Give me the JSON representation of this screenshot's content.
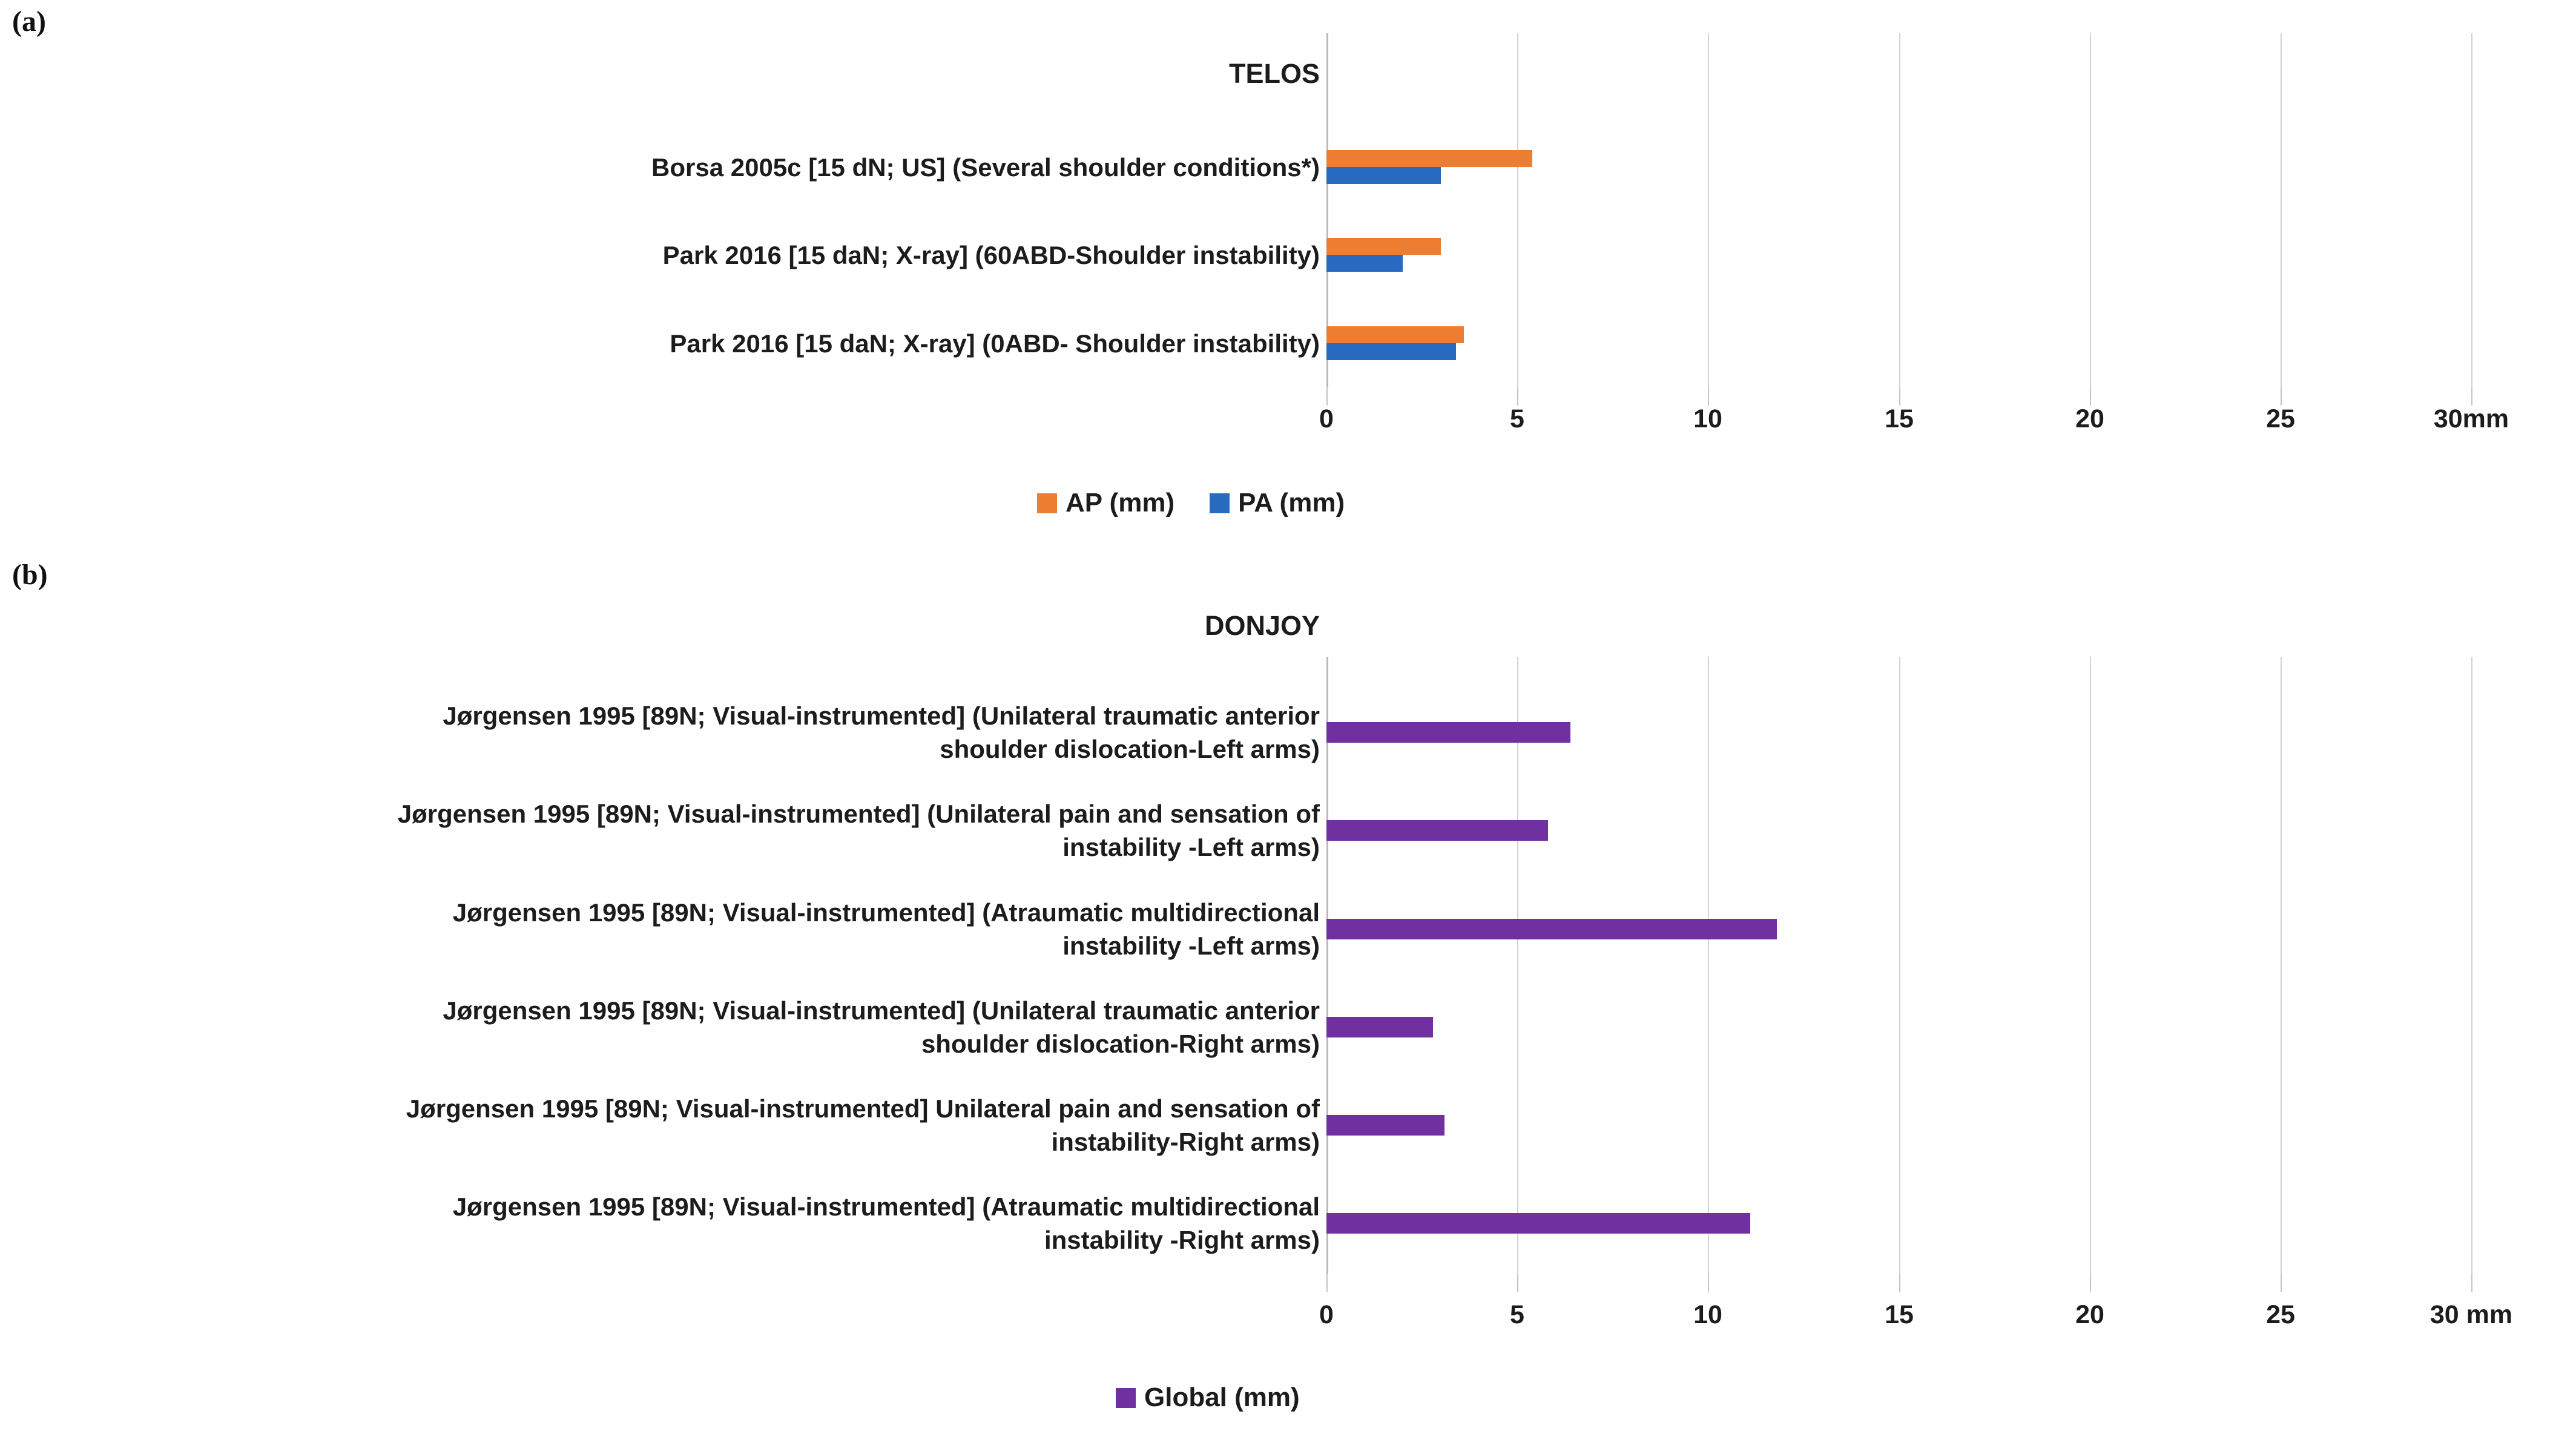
{
  "figure": {
    "panels": [
      {
        "corner_label": "(a)"
      },
      {
        "corner_label": "(b)"
      }
    ]
  },
  "chart_data": [
    {
      "type": "bar",
      "orientation": "horizontal",
      "title": "TELOS",
      "categories": [
        "Borsa 2005c [15 dN; US]  (Several shoulder conditions*)",
        "Park 2016 [15 daN; X-ray] (60ABD-Shoulder instability)",
        "Park 2016 [15 daN; X-ray] (0ABD- Shoulder instability)"
      ],
      "series": [
        {
          "name": "AP (mm)",
          "color": "#ED7D31",
          "values": [
            5.4,
            3.0,
            3.6
          ]
        },
        {
          "name": "PA (mm)",
          "color": "#2A6BC2",
          "values": [
            3.0,
            2.0,
            3.4
          ]
        }
      ],
      "xlim": [
        0,
        30
      ],
      "xtick_labels": [
        "0",
        "5",
        "10",
        "15",
        "20",
        "25",
        "30mm"
      ],
      "xunit": "mm",
      "grid": true,
      "legend_position": "bottom"
    },
    {
      "type": "bar",
      "orientation": "horizontal",
      "title": "DONJOY",
      "categories": [
        "Jørgensen 1995 [89N; Visual-instrumented] (Unilateral traumatic anterior\nshoulder dislocation-Left arms)",
        "Jørgensen 1995 [89N; Visual-instrumented] (Unilateral pain and sensation of\ninstability -Left arms)",
        "Jørgensen 1995  [89N; Visual-instrumented] (Atraumatic multidirectional\ninstability -Left arms)",
        "Jørgensen 1995 [89N; Visual-instrumented] (Unilateral traumatic anterior\nshoulder dislocation-Right arms)",
        "Jørgensen 1995 [89N; Visual-instrumented] Unilateral pain and sensation of\ninstability-Right arms)",
        "Jørgensen 1995 [89N; Visual-instrumented] (Atraumatic multidirectional\ninstability -Right arms)"
      ],
      "series": [
        {
          "name": "Global (mm)",
          "color": "#7030A0",
          "values": [
            6.4,
            5.8,
            11.8,
            2.8,
            3.1,
            11.1
          ]
        }
      ],
      "xlim": [
        0,
        30
      ],
      "xtick_labels": [
        "0",
        "5",
        "10",
        "15",
        "20",
        "25",
        "30 mm"
      ],
      "xunit": "mm",
      "grid": true,
      "legend_position": "bottom"
    }
  ]
}
